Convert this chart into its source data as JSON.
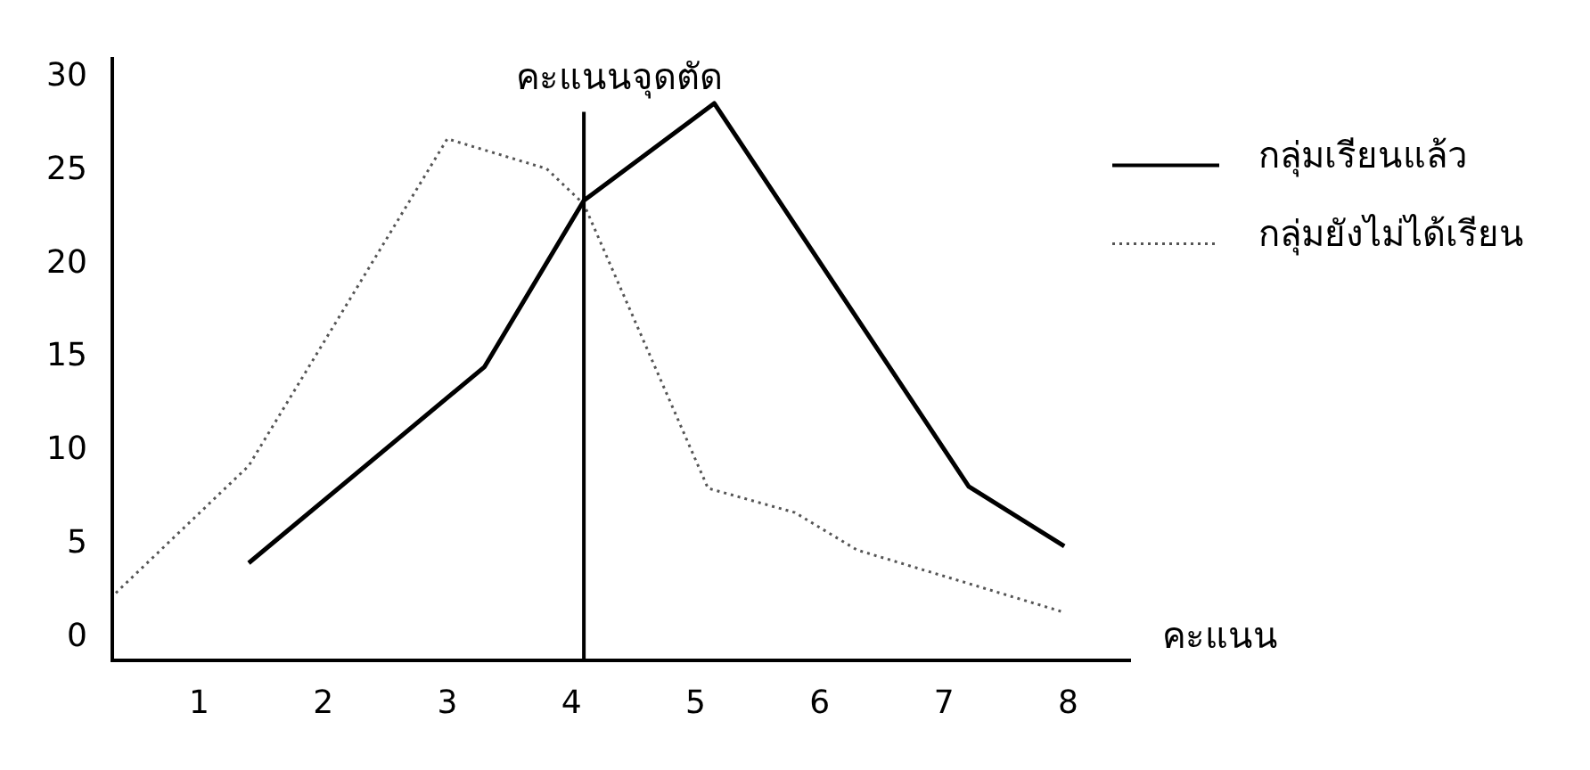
{
  "chart_data": {
    "type": "line",
    "xlabel": "คะแนน",
    "x": [
      1.4,
      3.3,
      4.1,
      5.15,
      7.2,
      7.97
    ],
    "series": [
      {
        "name": "กลุ่มเรียนแล้ว",
        "color": "#000000",
        "line_style": "solid",
        "values": [
          4.0,
          14.5,
          23.4,
          28.6,
          8.1,
          4.9
        ]
      },
      {
        "name": "กลุ่มยังไม่ได้เรียน",
        "color": "#555555",
        "line_style": "dotted",
        "x": [
          0.33,
          1.4,
          3.0,
          3.8,
          4.1,
          5.1,
          5.8,
          6.3,
          7.95
        ],
        "values": [
          2.4,
          9.2,
          26.7,
          25.1,
          23.2,
          8.0,
          6.7,
          4.7,
          1.4
        ]
      }
    ],
    "xlim": [
      0.3,
      8.5
    ],
    "xticks": [
      1,
      2,
      3,
      4,
      5,
      6,
      7,
      8
    ],
    "ylim": [
      -1.2,
      31
    ],
    "yticks": [
      0,
      5,
      10,
      15,
      20,
      25,
      30
    ],
    "ref_lines": [
      {
        "axis": "x",
        "value": 4.1,
        "label": "คะแนนจุดตัด",
        "color": "#000000"
      }
    ],
    "grid": false,
    "legend": "top right",
    "marker": "none"
  }
}
